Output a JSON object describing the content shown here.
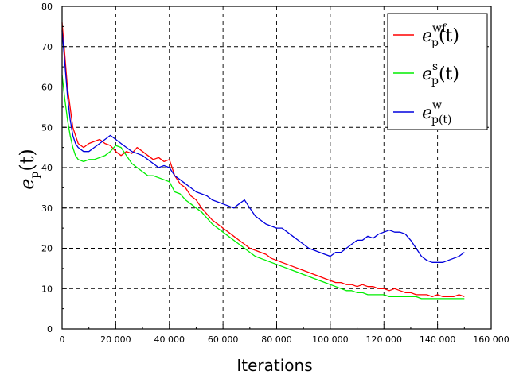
{
  "chart_data": {
    "type": "line",
    "xlabel": "Iterations",
    "ylabel_main": "e",
    "ylabel_sub": "p",
    "ylabel_arg": "(t)",
    "xlim": [
      0,
      160000
    ],
    "ylim": [
      0,
      80
    ],
    "x_ticks": [
      0,
      20000,
      40000,
      60000,
      80000,
      100000,
      120000,
      140000,
      160000
    ],
    "x_tick_labels": [
      "0",
      "20 000",
      "40 000",
      "60 000",
      "80 000",
      "100 000",
      "120 000",
      "140 000",
      "160 000"
    ],
    "y_ticks": [
      0,
      10,
      20,
      30,
      40,
      50,
      60,
      70,
      80
    ],
    "y_tick_labels": [
      "0",
      "10",
      "20",
      "30",
      "40",
      "50",
      "60",
      "70",
      "80"
    ],
    "grid": true,
    "legend_position": "top-right",
    "series": [
      {
        "legend_main": "e",
        "legend_sub": "p",
        "legend_sup": "wf",
        "legend_arg": "(t)",
        "color": "#ff0000",
        "x": [
          0,
          1000,
          2000,
          3000,
          4000,
          5000,
          6000,
          8000,
          10000,
          12000,
          14000,
          16000,
          18000,
          20000,
          22000,
          24000,
          26000,
          28000,
          30000,
          32000,
          34000,
          36000,
          38000,
          40000,
          42000,
          44000,
          46000,
          48000,
          50000,
          52000,
          54000,
          56000,
          58000,
          60000,
          62000,
          64000,
          66000,
          68000,
          70000,
          72000,
          74000,
          76000,
          78000,
          80000,
          82000,
          84000,
          86000,
          88000,
          90000,
          92000,
          94000,
          96000,
          98000,
          100000,
          102000,
          104000,
          106000,
          108000,
          110000,
          112000,
          114000,
          116000,
          118000,
          120000,
          122000,
          124000,
          126000,
          128000,
          130000,
          132000,
          134000,
          136000,
          138000,
          140000,
          142000,
          144000,
          146000,
          148000,
          150000
        ],
        "y": [
          76,
          68,
          60,
          55,
          50,
          48,
          46,
          45,
          46,
          46.5,
          47,
          46,
          45.5,
          44,
          43,
          44,
          43.5,
          45,
          44,
          43,
          42,
          42.5,
          41.5,
          42,
          38,
          36,
          35,
          33,
          32,
          30,
          28.5,
          27,
          26,
          25,
          24,
          23,
          22,
          21,
          20,
          19.5,
          19,
          18.5,
          17.5,
          17,
          16.5,
          16,
          15.5,
          15,
          14.5,
          14,
          13.5,
          13,
          12.5,
          12,
          11.5,
          11.5,
          11,
          11,
          10.5,
          11,
          10.5,
          10.5,
          10,
          10,
          9.5,
          10,
          9.5,
          9,
          9,
          8.5,
          8.5,
          8.5,
          8,
          8.5,
          8,
          8,
          8,
          8.5,
          8
        ]
      },
      {
        "legend_main": "e",
        "legend_sub": "p",
        "legend_sup": "s",
        "legend_arg": "(t)",
        "color": "#00ee00",
        "x": [
          0,
          1000,
          2000,
          3000,
          4000,
          5000,
          6000,
          8000,
          10000,
          12000,
          14000,
          16000,
          18000,
          20000,
          22000,
          24000,
          26000,
          28000,
          30000,
          32000,
          34000,
          36000,
          38000,
          40000,
          42000,
          44000,
          46000,
          48000,
          50000,
          52000,
          54000,
          56000,
          58000,
          60000,
          62000,
          64000,
          66000,
          68000,
          70000,
          72000,
          74000,
          76000,
          78000,
          80000,
          82000,
          84000,
          86000,
          88000,
          90000,
          92000,
          94000,
          96000,
          98000,
          100000,
          102000,
          104000,
          106000,
          108000,
          110000,
          112000,
          114000,
          116000,
          118000,
          120000,
          122000,
          124000,
          126000,
          128000,
          130000,
          132000,
          134000,
          136000,
          138000,
          140000,
          142000,
          144000,
          146000,
          148000,
          150000
        ],
        "y": [
          63,
          57,
          52,
          48,
          45,
          43,
          42,
          41.5,
          42,
          42,
          42.5,
          43,
          44,
          45.5,
          45,
          43,
          41,
          40,
          39,
          38,
          38,
          37.5,
          37,
          36.5,
          34,
          33.5,
          32,
          31,
          30,
          29,
          27.5,
          26,
          25,
          24,
          23,
          22,
          21,
          20,
          19,
          18,
          17.5,
          17,
          16.5,
          16,
          15.5,
          15,
          14.5,
          14,
          13.5,
          13,
          12.5,
          12,
          11.5,
          11,
          10.5,
          10,
          9.5,
          9.5,
          9,
          9,
          8.5,
          8.5,
          8.5,
          8.5,
          8,
          8,
          8,
          8,
          8,
          8,
          7.5,
          7.5,
          7.5,
          7.5,
          7.5,
          7.5,
          7.5,
          7.5,
          7.5
        ]
      },
      {
        "legend_main": "e",
        "legend_sub": "p(t)",
        "legend_sup": "w",
        "legend_arg": "",
        "color": "#0000dd",
        "x": [
          0,
          1000,
          2000,
          3000,
          4000,
          5000,
          6000,
          8000,
          10000,
          12000,
          14000,
          16000,
          18000,
          20000,
          22000,
          24000,
          26000,
          28000,
          30000,
          32000,
          34000,
          36000,
          38000,
          40000,
          42000,
          44000,
          46000,
          48000,
          50000,
          52000,
          54000,
          56000,
          58000,
          60000,
          62000,
          64000,
          66000,
          68000,
          70000,
          72000,
          74000,
          76000,
          78000,
          80000,
          82000,
          84000,
          86000,
          88000,
          90000,
          92000,
          94000,
          96000,
          98000,
          100000,
          102000,
          104000,
          106000,
          108000,
          110000,
          112000,
          114000,
          116000,
          118000,
          120000,
          122000,
          124000,
          126000,
          128000,
          130000,
          132000,
          134000,
          136000,
          138000,
          140000,
          142000,
          144000,
          146000,
          148000,
          150000
        ],
        "y": [
          74,
          66,
          58,
          52,
          48,
          46,
          45,
          44,
          44,
          45,
          46,
          47,
          48,
          47,
          46,
          45,
          44,
          43.5,
          43,
          42,
          41,
          40,
          40.5,
          40,
          38,
          37,
          36,
          35,
          34,
          33.5,
          33,
          32,
          31.5,
          31,
          30.5,
          30,
          31,
          32,
          30,
          28,
          27,
          26,
          25.5,
          25,
          25,
          24,
          23,
          22,
          21,
          20,
          19.5,
          19,
          18.5,
          18,
          19,
          19,
          20,
          21,
          22,
          22,
          23,
          22.5,
          23.5,
          24,
          24.5,
          24,
          24,
          23.5,
          22,
          20,
          18,
          17,
          16.5,
          16.5,
          16.5,
          17,
          17.5,
          18,
          19
        ]
      }
    ]
  }
}
